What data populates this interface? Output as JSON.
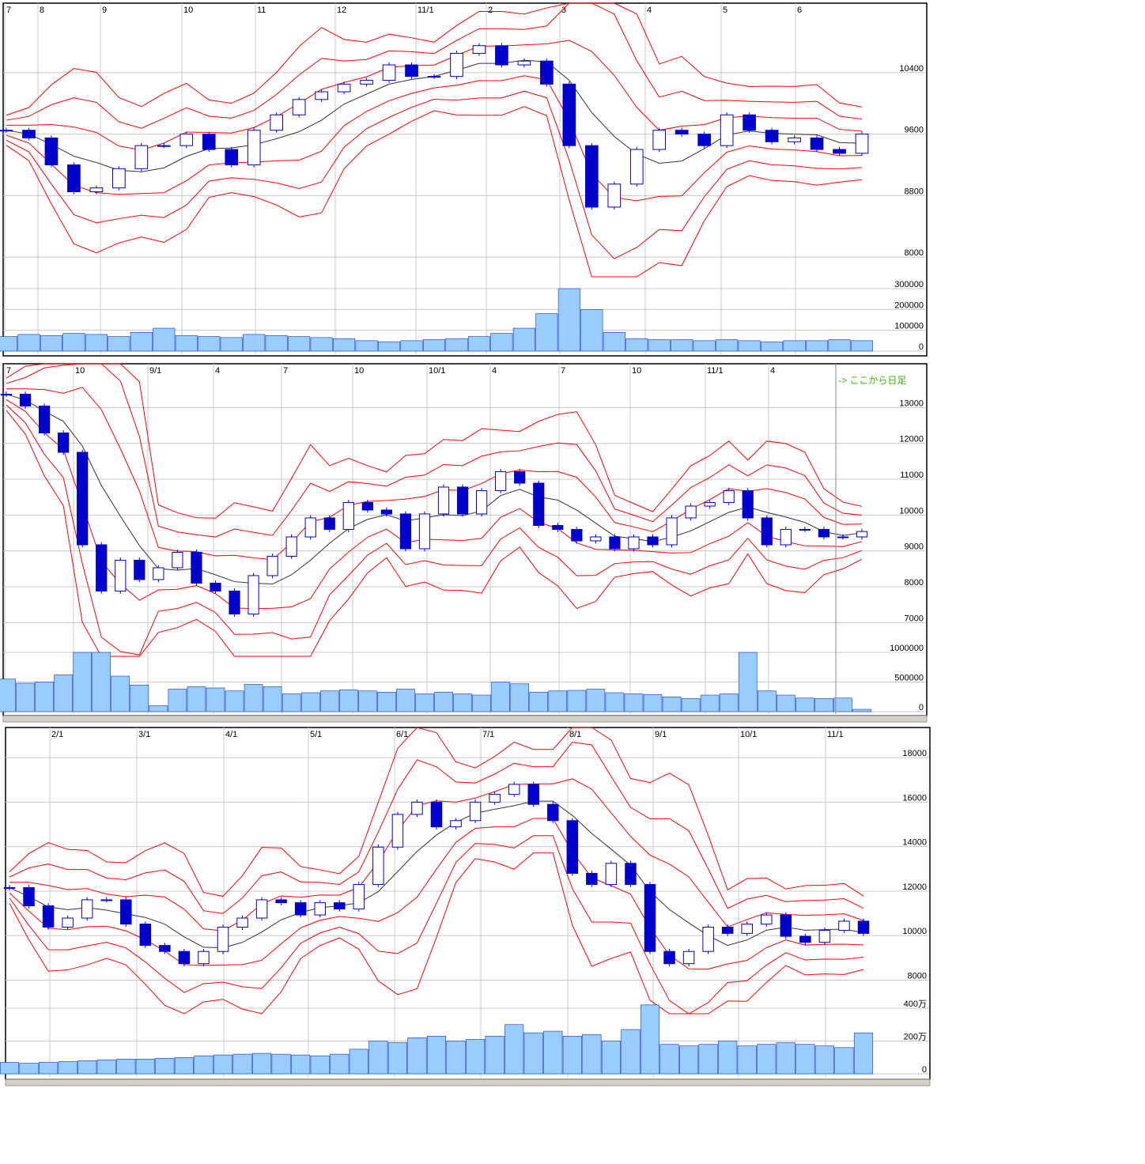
{
  "colors": {
    "bull_fill": "#ffffff",
    "candle": "#0000cc",
    "bands": "#ff0000",
    "ma": "#333333",
    "volume": "#99ccff",
    "grid": "#c8c8c8",
    "note": "#33bb00"
  },
  "note": "-> ここから日足",
  "chart_data": [
    {
      "type": "candlestick",
      "x_ticks": [
        "7",
        "8",
        "9",
        "10",
        "11",
        "12",
        "11/1",
        "2",
        "3",
        "4",
        "5",
        "6"
      ],
      "y_ticks": [
        "8000",
        "8800",
        "9600",
        "10400"
      ],
      "ylim": [
        7950,
        11200
      ],
      "closes": [
        9650,
        9550,
        9200,
        8850,
        8900,
        9150,
        9450,
        9450,
        9600,
        9400,
        9200,
        9650,
        9850,
        10050,
        10150,
        10250,
        10300,
        10500,
        10350,
        10350,
        10650,
        10750,
        10500,
        10550,
        10250,
        9450,
        8650,
        8950,
        9400,
        9650,
        9600,
        9450,
        9850,
        9650,
        9500,
        9550,
        9400,
        9350,
        9600
      ],
      "volume": {
        "y_ticks": [
          "0",
          "100000",
          "200000",
          "300000"
        ],
        "ylim": [
          0,
          310000
        ],
        "values": [
          70000,
          80000,
          75000,
          85000,
          80000,
          70000,
          90000,
          110000,
          75000,
          70000,
          65000,
          80000,
          75000,
          70000,
          65000,
          60000,
          50000,
          45000,
          50000,
          55000,
          60000,
          70000,
          85000,
          110000,
          180000,
          300000,
          200000,
          90000,
          60000,
          55000,
          55000,
          50000,
          55000,
          50000,
          45000,
          50000,
          50000,
          55000,
          50000
        ]
      }
    },
    {
      "type": "candlestick",
      "x_ticks": [
        "7",
        "10",
        "9/1",
        "4",
        "7",
        "10",
        "10/1",
        "4",
        "7",
        "10",
        "11/1",
        "4"
      ],
      "y_ticks": [
        "7000",
        "8000",
        "9000",
        "10000",
        "11000",
        "12000",
        "13000"
      ],
      "ylim": [
        6500,
        14000
      ],
      "closes": [
        13370,
        13040,
        12290,
        11750,
        9170,
        7880,
        8740,
        8200,
        8530,
        8960,
        8100,
        7880,
        7240,
        8310,
        8850,
        9390,
        9920,
        9600,
        10350,
        10140,
        10030,
        9060,
        10030,
        10780,
        10030,
        10680,
        11210,
        10890,
        9710,
        9600,
        9280,
        9390,
        9060,
        9390,
        9170,
        9920,
        10250,
        10350,
        10680,
        9920,
        9170,
        9600,
        9600,
        9390,
        9390,
        9540
      ],
      "volume": {
        "y_ticks": [
          "0",
          "500000",
          "1000000"
        ],
        "ylim": [
          0,
          1050000
        ],
        "values": [
          550000,
          480000,
          500000,
          620000,
          1000000,
          1000000,
          600000,
          450000,
          100000,
          380000,
          420000,
          400000,
          350000,
          460000,
          420000,
          300000,
          320000,
          350000,
          370000,
          350000,
          330000,
          380000,
          300000,
          330000,
          300000,
          280000,
          500000,
          470000,
          330000,
          350000,
          360000,
          380000,
          320000,
          300000,
          290000,
          250000,
          220000,
          280000,
          300000,
          1000000,
          350000,
          280000,
          230000,
          220000,
          230000,
          40000
        ]
      }
    },
    {
      "type": "candlestick",
      "x_ticks": [
        "2/1",
        "3/1",
        "4/1",
        "5/1",
        "6/1",
        "7/1",
        "8/1",
        "9/1",
        "10/1",
        "11/1"
      ],
      "y_ticks": [
        "8000",
        "10000",
        "12000",
        "14000",
        "16000",
        "18000"
      ],
      "ylim": [
        7200,
        19000
      ],
      "closes": [
        12160,
        11340,
        10380,
        10790,
        11610,
        11610,
        10520,
        9560,
        9290,
        8740,
        9290,
        10380,
        10790,
        11610,
        11480,
        10930,
        11480,
        11200,
        12300,
        13980,
        15450,
        16000,
        14890,
        15170,
        16000,
        16350,
        16800,
        15900,
        15170,
        12800,
        12300,
        13250,
        12300,
        9290,
        8740,
        9290,
        10380,
        10100,
        10520,
        10930,
        9970,
        9700,
        10240,
        10650,
        10100
      ],
      "volume": {
        "y_ticks": [
          "0",
          "200万",
          "400万"
        ],
        "ylim": [
          0,
          430
        ],
        "values": [
          70,
          65,
          70,
          75,
          80,
          85,
          90,
          90,
          95,
          100,
          110,
          115,
          120,
          125,
          120,
          115,
          110,
          120,
          150,
          200,
          190,
          220,
          230,
          200,
          210,
          230,
          300,
          250,
          260,
          230,
          240,
          200,
          270,
          420,
          180,
          170,
          180,
          200,
          170,
          180,
          190,
          180,
          170,
          160,
          250
        ]
      }
    }
  ]
}
